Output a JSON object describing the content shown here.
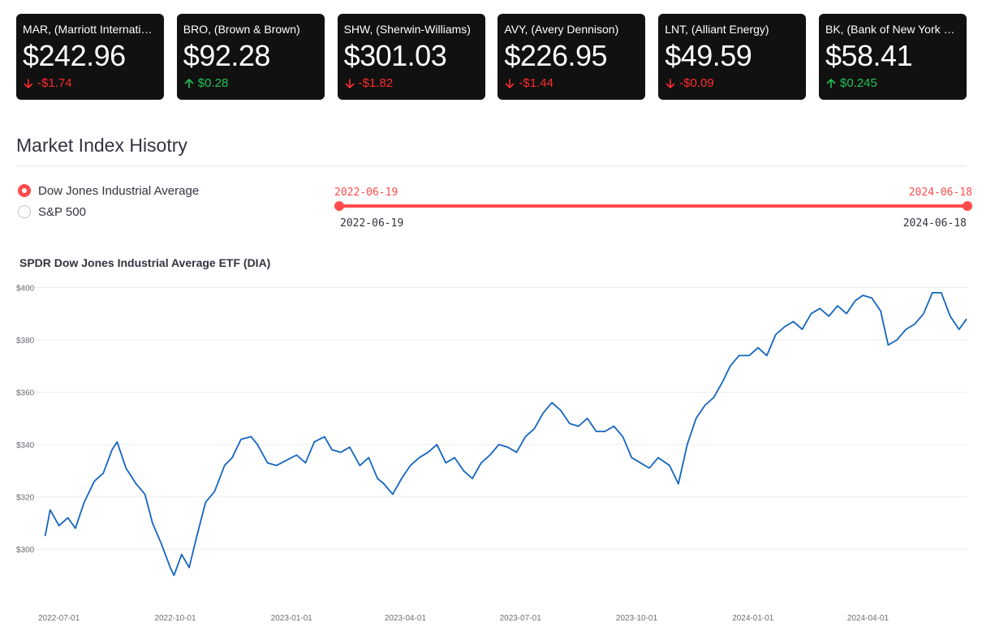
{
  "metrics": [
    {
      "label": "MAR, (Marriott International)",
      "value": "$242.96",
      "delta": "-$1.74",
      "direction": "down"
    },
    {
      "label": "BRO, (Brown & Brown)",
      "value": "$92.28",
      "delta": "$0.28",
      "direction": "up"
    },
    {
      "label": "SHW, (Sherwin-Williams)",
      "value": "$301.03",
      "delta": "-$1.82",
      "direction": "down"
    },
    {
      "label": "AVY, (Avery Dennison)",
      "value": "$226.95",
      "delta": "-$1.44",
      "direction": "down"
    },
    {
      "label": "LNT, (Alliant Energy)",
      "value": "$49.59",
      "delta": "-$0.09",
      "direction": "down"
    },
    {
      "label": "BK, (Bank of New York Mellon)",
      "value": "$58.41",
      "delta": "$0.245",
      "direction": "up"
    }
  ],
  "colors": {
    "up": "#21c354",
    "down": "#ff2b2b",
    "accent": "#ff4b4b",
    "line": "#1565c0"
  },
  "section_title": "Market Index Hisotry",
  "radio": {
    "options": [
      "Dow Jones Industrial Average",
      "S&P 500"
    ],
    "selected": 0
  },
  "slider": {
    "start": "2022-06-19",
    "end": "2024-06-18",
    "min": "2022-06-19",
    "max": "2024-06-18"
  },
  "chart_data": {
    "type": "line",
    "title": "SPDR Dow Jones Industrial Average ETF (DIA)",
    "xlabel": "",
    "ylabel": "",
    "x_range": [
      "2022-06-19",
      "2024-06-18"
    ],
    "ylim": [
      283,
      402
    ],
    "yticks": [
      "$300",
      "$320",
      "$340",
      "$360",
      "$380",
      "$400"
    ],
    "ytick_values": [
      300,
      320,
      340,
      360,
      380,
      400
    ],
    "xticks": [
      "2022-07-01",
      "2022-10-01",
      "2023-01-01",
      "2023-04-01",
      "2023-07-01",
      "2023-10-01",
      "2024-01-01",
      "2024-04-01"
    ],
    "grid": true,
    "series": [
      {
        "x": [
          "2022-06-20",
          "2022-06-24",
          "2022-07-01",
          "2022-07-08",
          "2022-07-14",
          "2022-07-21",
          "2022-07-29",
          "2022-08-05",
          "2022-08-12",
          "2022-08-16",
          "2022-08-23",
          "2022-08-31",
          "2022-09-07",
          "2022-09-13",
          "2022-09-20",
          "2022-09-27",
          "2022-09-30",
          "2022-10-06",
          "2022-10-12",
          "2022-10-18",
          "2022-10-25",
          "2022-11-01",
          "2022-11-09",
          "2022-11-15",
          "2022-11-22",
          "2022-11-30",
          "2022-12-05",
          "2022-12-13",
          "2022-12-20",
          "2022-12-28",
          "2023-01-05",
          "2023-01-12",
          "2023-01-19",
          "2023-01-27",
          "2023-02-02",
          "2023-02-09",
          "2023-02-16",
          "2023-02-24",
          "2023-03-03",
          "2023-03-10",
          "2023-03-15",
          "2023-03-22",
          "2023-03-29",
          "2023-04-05",
          "2023-04-12",
          "2023-04-19",
          "2023-04-26",
          "2023-05-03",
          "2023-05-10",
          "2023-05-17",
          "2023-05-24",
          "2023-05-31",
          "2023-06-07",
          "2023-06-14",
          "2023-06-21",
          "2023-06-28",
          "2023-07-05",
          "2023-07-12",
          "2023-07-19",
          "2023-07-26",
          "2023-08-02",
          "2023-08-09",
          "2023-08-16",
          "2023-08-23",
          "2023-08-30",
          "2023-09-06",
          "2023-09-13",
          "2023-09-20",
          "2023-09-27",
          "2023-10-04",
          "2023-10-11",
          "2023-10-18",
          "2023-10-27",
          "2023-11-03",
          "2023-11-10",
          "2023-11-17",
          "2023-11-24",
          "2023-12-01",
          "2023-12-08",
          "2023-12-14",
          "2023-12-21",
          "2023-12-29",
          "2024-01-05",
          "2024-01-12",
          "2024-01-19",
          "2024-01-26",
          "2024-02-02",
          "2024-02-09",
          "2024-02-16",
          "2024-02-23",
          "2024-03-01",
          "2024-03-08",
          "2024-03-15",
          "2024-03-22",
          "2024-03-28",
          "2024-04-04",
          "2024-04-11",
          "2024-04-17",
          "2024-04-24",
          "2024-05-01",
          "2024-05-08",
          "2024-05-15",
          "2024-05-22",
          "2024-05-29",
          "2024-06-05",
          "2024-06-12",
          "2024-06-18"
        ],
        "values": [
          305,
          315,
          309,
          312,
          308,
          318,
          326,
          329,
          338,
          341,
          331,
          325,
          321,
          310,
          302,
          293,
          290,
          298,
          293,
          305,
          318,
          322,
          332,
          335,
          342,
          343,
          340,
          333,
          332,
          334,
          336,
          333,
          341,
          343,
          338,
          337,
          339,
          332,
          335,
          327,
          325,
          321,
          327,
          332,
          335,
          337,
          340,
          333,
          335,
          330,
          327,
          333,
          336,
          340,
          339,
          337,
          343,
          346,
          352,
          356,
          353,
          348,
          347,
          350,
          345,
          345,
          347,
          343,
          335,
          333,
          331,
          335,
          332,
          325,
          340,
          350,
          355,
          358,
          364,
          370,
          374,
          374,
          377,
          374,
          382,
          385,
          387,
          384,
          390,
          392,
          389,
          393,
          390,
          395,
          397,
          396,
          391,
          378,
          380,
          384,
          386,
          390,
          398,
          398,
          389,
          384,
          388
        ]
      }
    ]
  }
}
